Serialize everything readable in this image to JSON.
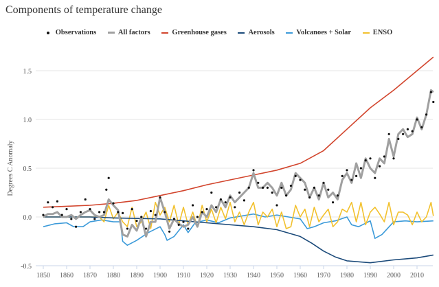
{
  "chart_data": {
    "type": "line",
    "title": "Components of temperature change",
    "xlabel": "",
    "ylabel": "Degrees C Anomaly",
    "xlim": [
      1848,
      2018
    ],
    "ylim": [
      -0.5,
      1.65
    ],
    "grid": true,
    "legend_position": "top-center",
    "xticks": [
      1850,
      1860,
      1870,
      1880,
      1890,
      1900,
      1910,
      1920,
      1930,
      1940,
      1950,
      1960,
      1970,
      1980,
      1990,
      2000,
      2010
    ],
    "yticks": [
      -0.5,
      0,
      0.5,
      1.0,
      1.5
    ],
    "ytick_labels": [
      "-0.5",
      "0.0",
      "0.5",
      "1.0",
      "1.5"
    ],
    "series": [
      {
        "name": "Observations",
        "kind": "scatter",
        "color": "#111111",
        "x": [
          1850,
          1852,
          1854,
          1856,
          1858,
          1860,
          1862,
          1864,
          1866,
          1868,
          1870,
          1872,
          1874,
          1876,
          1877,
          1878,
          1880,
          1882,
          1884,
          1886,
          1888,
          1890,
          1892,
          1894,
          1896,
          1898,
          1900,
          1902,
          1904,
          1906,
          1908,
          1910,
          1912,
          1914,
          1916,
          1918,
          1920,
          1922,
          1924,
          1926,
          1928,
          1930,
          1932,
          1934,
          1936,
          1938,
          1940,
          1942,
          1944,
          1946,
          1948,
          1950,
          1952,
          1954,
          1956,
          1958,
          1960,
          1962,
          1964,
          1966,
          1968,
          1970,
          1972,
          1974,
          1976,
          1978,
          1980,
          1982,
          1984,
          1986,
          1988,
          1990,
          1992,
          1994,
          1996,
          1998,
          2000,
          2002,
          2004,
          2006,
          2008,
          2010,
          2012,
          2014,
          2016,
          2017
        ],
        "y": [
          0.02,
          0.15,
          0.1,
          0.16,
          0.02,
          0.08,
          -0.02,
          -0.1,
          0.05,
          0.18,
          0.08,
          -0.02,
          0.05,
          0.05,
          0.28,
          0.4,
          0.14,
          0.05,
          0.04,
          -0.12,
          0.08,
          -0.04,
          0.0,
          -0.12,
          0.06,
          0.02,
          0.2,
          0.05,
          -0.15,
          -0.02,
          -0.08,
          -0.05,
          -0.12,
          0.12,
          0.0,
          0.05,
          0.08,
          0.25,
          0.1,
          0.18,
          0.15,
          0.2,
          0.1,
          0.25,
          0.17,
          0.3,
          0.48,
          0.35,
          0.3,
          0.3,
          0.25,
          0.12,
          0.3,
          0.22,
          0.32,
          0.42,
          0.38,
          0.28,
          0.2,
          0.3,
          0.22,
          0.35,
          0.28,
          0.15,
          0.22,
          0.42,
          0.48,
          0.38,
          0.42,
          0.5,
          0.58,
          0.6,
          0.4,
          0.52,
          0.62,
          0.85,
          0.6,
          0.8,
          0.85,
          0.9,
          0.88,
          1.0,
          0.92,
          1.05,
          1.28,
          1.18
        ]
      },
      {
        "name": "All factors",
        "kind": "line",
        "color": "#a0a0a0",
        "x": [
          1850,
          1852,
          1854,
          1856,
          1858,
          1860,
          1862,
          1864,
          1866,
          1868,
          1870,
          1872,
          1874,
          1876,
          1878,
          1880,
          1882,
          1884,
          1886,
          1888,
          1890,
          1892,
          1894,
          1896,
          1898,
          1900,
          1902,
          1904,
          1906,
          1908,
          1910,
          1912,
          1914,
          1916,
          1918,
          1920,
          1922,
          1924,
          1926,
          1928,
          1930,
          1932,
          1934,
          1936,
          1938,
          1940,
          1942,
          1944,
          1946,
          1948,
          1950,
          1952,
          1954,
          1956,
          1958,
          1960,
          1962,
          1964,
          1966,
          1968,
          1970,
          1972,
          1974,
          1976,
          1978,
          1980,
          1982,
          1984,
          1986,
          1988,
          1990,
          1992,
          1994,
          1996,
          1998,
          2000,
          2002,
          2004,
          2006,
          2008,
          2010,
          2012,
          2014,
          2016,
          2017
        ],
        "y": [
          0.0,
          0.03,
          0.03,
          0.05,
          0.0,
          0.0,
          0.02,
          -0.02,
          0.02,
          0.05,
          0.07,
          0.02,
          0.0,
          0.02,
          0.18,
          0.12,
          0.07,
          -0.18,
          -0.2,
          -0.08,
          -0.14,
          0.0,
          -0.2,
          -0.05,
          -0.05,
          0.2,
          0.05,
          -0.12,
          -0.02,
          -0.07,
          -0.1,
          -0.08,
          0.0,
          -0.1,
          0.05,
          0.0,
          0.12,
          0.05,
          0.18,
          0.1,
          0.22,
          0.15,
          0.2,
          0.25,
          0.3,
          0.45,
          0.3,
          0.3,
          0.35,
          0.3,
          0.22,
          0.35,
          0.22,
          0.28,
          0.45,
          0.4,
          0.35,
          0.2,
          0.3,
          0.18,
          0.35,
          0.2,
          0.25,
          0.18,
          0.38,
          0.45,
          0.35,
          0.55,
          0.4,
          0.6,
          0.5,
          0.45,
          0.6,
          0.55,
          0.8,
          0.62,
          0.85,
          0.9,
          0.82,
          0.85,
          1.02,
          0.9,
          1.05,
          1.3,
          1.28
        ]
      },
      {
        "name": "Greenhouse gases",
        "kind": "line",
        "color": "#d2452d",
        "x": [
          1850,
          1860,
          1870,
          1880,
          1890,
          1900,
          1910,
          1920,
          1930,
          1940,
          1950,
          1960,
          1970,
          1980,
          1990,
          2000,
          2010,
          2017
        ],
        "y": [
          0.1,
          0.11,
          0.12,
          0.14,
          0.17,
          0.22,
          0.27,
          0.33,
          0.38,
          0.43,
          0.48,
          0.55,
          0.68,
          0.9,
          1.12,
          1.3,
          1.5,
          1.64
        ]
      },
      {
        "name": "Aerosols",
        "kind": "line",
        "color": "#1b4a7a",
        "x": [
          1850,
          1870,
          1880,
          1900,
          1920,
          1940,
          1950,
          1960,
          1965,
          1970,
          1975,
          1980,
          1990,
          2000,
          2005,
          2010,
          2017
        ],
        "y": [
          0.0,
          0.0,
          -0.01,
          -0.02,
          -0.06,
          -0.1,
          -0.13,
          -0.2,
          -0.27,
          -0.35,
          -0.41,
          -0.45,
          -0.47,
          -0.44,
          -0.43,
          -0.42,
          -0.39
        ]
      },
      {
        "name": "Volcanoes + Solar",
        "kind": "line",
        "color": "#3b9ad9",
        "x": [
          1850,
          1855,
          1860,
          1863,
          1867,
          1870,
          1875,
          1880,
          1883,
          1884,
          1886,
          1890,
          1895,
          1900,
          1902,
          1903,
          1906,
          1910,
          1912,
          1915,
          1920,
          1925,
          1930,
          1940,
          1945,
          1950,
          1955,
          1960,
          1963,
          1966,
          1970,
          1975,
          1980,
          1982,
          1985,
          1990,
          1992,
          1995,
          2000,
          2005,
          2010,
          2017
        ],
        "y": [
          -0.1,
          -0.07,
          -0.06,
          -0.1,
          -0.1,
          -0.05,
          -0.03,
          -0.05,
          -0.05,
          -0.25,
          -0.29,
          -0.24,
          -0.16,
          -0.1,
          -0.18,
          -0.24,
          -0.2,
          -0.08,
          -0.16,
          -0.06,
          -0.03,
          -0.06,
          -0.01,
          0.03,
          0.0,
          0.02,
          0.0,
          -0.02,
          -0.12,
          -0.1,
          -0.06,
          -0.04,
          0.0,
          -0.08,
          -0.1,
          -0.04,
          -0.22,
          -0.18,
          -0.05,
          -0.04,
          -0.05,
          -0.04
        ]
      },
      {
        "name": "ENSO",
        "kind": "line",
        "color": "#f2c12e",
        "x": [
          1850,
          1874,
          1876,
          1878,
          1880,
          1882,
          1884,
          1886,
          1888,
          1890,
          1892,
          1894,
          1896,
          1898,
          1900,
          1902,
          1904,
          1906,
          1908,
          1910,
          1912,
          1914,
          1916,
          1918,
          1920,
          1922,
          1924,
          1926,
          1928,
          1930,
          1932,
          1934,
          1936,
          1938,
          1940,
          1942,
          1944,
          1946,
          1948,
          1950,
          1952,
          1954,
          1956,
          1958,
          1960,
          1962,
          1964,
          1966,
          1968,
          1970,
          1972,
          1974,
          1976,
          1978,
          1980,
          1982,
          1984,
          1986,
          1988,
          1990,
          1992,
          1994,
          1996,
          1998,
          2000,
          2002,
          2004,
          2006,
          2008,
          2010,
          2012,
          2014,
          2016,
          2017
        ],
        "y": [
          0.0,
          0.0,
          -0.05,
          0.12,
          -0.02,
          0.05,
          -0.05,
          -0.1,
          0.1,
          -0.1,
          -0.05,
          0.05,
          -0.12,
          0.15,
          0.02,
          0.1,
          -0.05,
          0.12,
          -0.08,
          0.1,
          -0.08,
          0.05,
          -0.1,
          0.12,
          -0.05,
          0.08,
          -0.06,
          0.1,
          -0.02,
          0.15,
          -0.05,
          0.05,
          -0.08,
          0.05,
          0.15,
          -0.08,
          0.05,
          0.0,
          0.08,
          -0.1,
          0.05,
          -0.12,
          -0.1,
          0.12,
          0.0,
          0.08,
          -0.1,
          0.1,
          -0.05,
          0.02,
          0.08,
          -0.1,
          -0.05,
          0.08,
          0.05,
          0.15,
          -0.05,
          0.15,
          -0.08,
          0.05,
          0.1,
          0.03,
          -0.05,
          0.15,
          -0.08,
          0.05,
          0.05,
          0.02,
          -0.08,
          0.05,
          -0.05,
          0.0,
          0.15,
          0.01
        ]
      }
    ]
  }
}
